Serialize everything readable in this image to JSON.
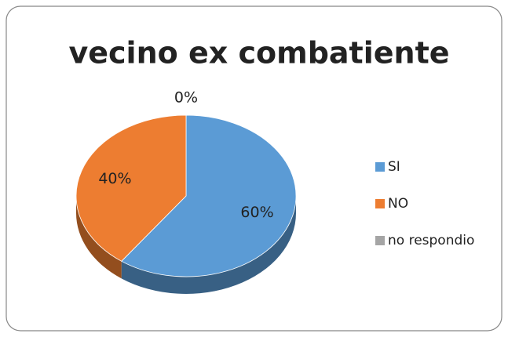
{
  "chart_data": {
    "type": "pie",
    "title": "vecino ex combatiente",
    "categories": [
      "SI",
      "NO",
      "no respondio"
    ],
    "values": [
      60,
      40,
      0
    ],
    "value_labels": [
      "60%",
      "40%",
      "0%"
    ],
    "colors": [
      "#5b9bd5",
      "#ed7d31",
      "#a5a5a5"
    ],
    "legend": "right"
  }
}
